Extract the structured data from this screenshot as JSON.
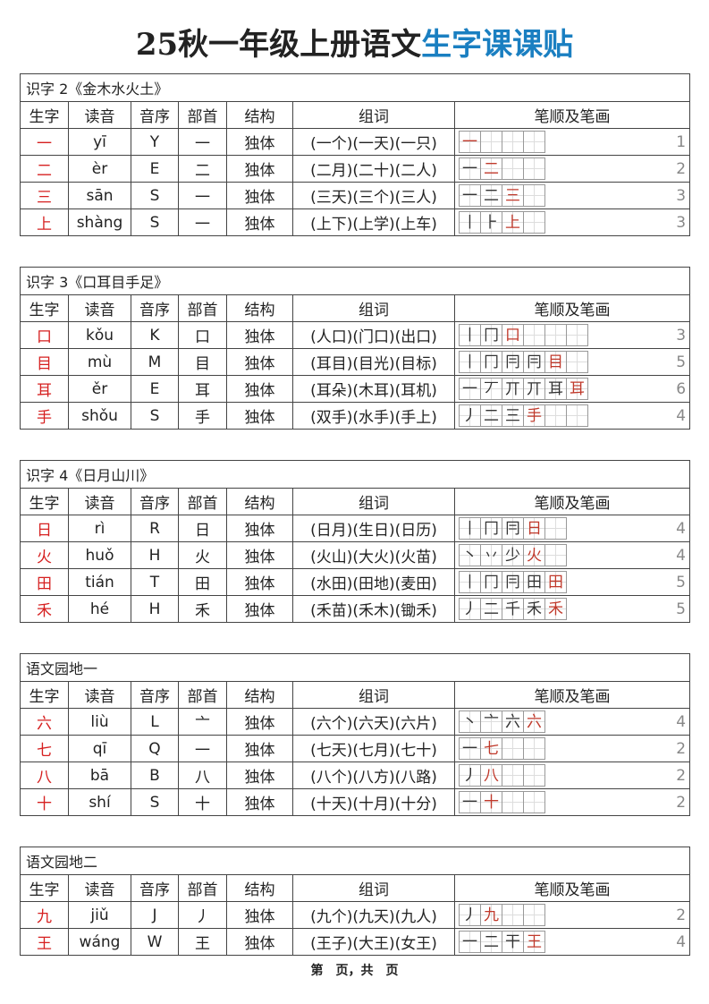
{
  "header": {
    "title_main": "25秋一年级上册语文",
    "title_highlight": "生字课课贴"
  },
  "column_headers": [
    "生字",
    "读音",
    "音序",
    "部首",
    "结构",
    "组词",
    "笔顺及笔画"
  ],
  "sections": [
    {
      "title": "识字 2《金木水火土》",
      "rows": [
        {
          "char": "一",
          "pinyin": "yī",
          "initial": "Y",
          "radical": "一",
          "structure": "独体",
          "words": "(一个)(一天)(一只)",
          "strokes": [
            "一"
          ],
          "count": 1
        },
        {
          "char": "二",
          "pinyin": "èr",
          "initial": "E",
          "radical": "二",
          "structure": "独体",
          "words": "(二月)(二十)(二人)",
          "strokes": [
            "一",
            "二"
          ],
          "count": 2
        },
        {
          "char": "三",
          "pinyin": "sān",
          "initial": "S",
          "radical": "一",
          "structure": "独体",
          "words": "(三天)(三个)(三人)",
          "strokes": [
            "一",
            "二",
            "三"
          ],
          "count": 3
        },
        {
          "char": "上",
          "pinyin": "shàng",
          "initial": "S",
          "radical": "一",
          "structure": "独体",
          "words": "(上下)(上学)(上车)",
          "strokes": [
            "丨",
            "⺊",
            "上"
          ],
          "count": 3
        }
      ]
    },
    {
      "title": "识字 3《口耳目手足》",
      "rows": [
        {
          "char": "口",
          "pinyin": "kǒu",
          "initial": "K",
          "radical": "口",
          "structure": "独体",
          "words": "(人口)(门口)(出口)",
          "strokes": [
            "丨",
            "冂",
            "口"
          ],
          "count": 3
        },
        {
          "char": "目",
          "pinyin": "mù",
          "initial": "M",
          "radical": "目",
          "structure": "独体",
          "words": "(耳目)(目光)(目标)",
          "strokes": [
            "丨",
            "冂",
            "冃",
            "冃",
            "目"
          ],
          "count": 5
        },
        {
          "char": "耳",
          "pinyin": "ěr",
          "initial": "E",
          "radical": "耳",
          "structure": "独体",
          "words": "(耳朵)(木耳)(耳机)",
          "strokes": [
            "一",
            "丆",
            "丌",
            "丌",
            "耳",
            "耳"
          ],
          "count": 6
        },
        {
          "char": "手",
          "pinyin": "shǒu",
          "initial": "S",
          "radical": "手",
          "structure": "独体",
          "words": "(双手)(水手)(手上)",
          "strokes": [
            "丿",
            "二",
            "三",
            "手"
          ],
          "count": 4
        }
      ]
    },
    {
      "title": "识字 4《日月山川》",
      "rows": [
        {
          "char": "日",
          "pinyin": "rì",
          "initial": "R",
          "radical": "日",
          "structure": "独体",
          "words": "(日月)(生日)(日历)",
          "strokes": [
            "丨",
            "冂",
            "冃",
            "日"
          ],
          "count": 4
        },
        {
          "char": "火",
          "pinyin": "huǒ",
          "initial": "H",
          "radical": "火",
          "structure": "独体",
          "words": "(火山)(大火)(火苗)",
          "strokes": [
            "丶",
            "丷",
            "少",
            "火"
          ],
          "count": 4
        },
        {
          "char": "田",
          "pinyin": "tián",
          "initial": "T",
          "radical": "田",
          "structure": "独体",
          "words": "(水田)(田地)(麦田)",
          "strokes": [
            "丨",
            "冂",
            "冃",
            "田",
            "田"
          ],
          "count": 5
        },
        {
          "char": "禾",
          "pinyin": "hé",
          "initial": "H",
          "radical": "禾",
          "structure": "独体",
          "words": "(禾苗)(禾木)(锄禾)",
          "strokes": [
            "丿",
            "二",
            "千",
            "禾",
            "禾"
          ],
          "count": 5
        }
      ]
    },
    {
      "title": "语文园地一",
      "rows": [
        {
          "char": "六",
          "pinyin": "liù",
          "initial": "L",
          "radical": "亠",
          "structure": "独体",
          "words": "(六个)(六天)(六片)",
          "strokes": [
            "丶",
            "亠",
            "六",
            "六"
          ],
          "count": 4
        },
        {
          "char": "七",
          "pinyin": "qī",
          "initial": "Q",
          "radical": "一",
          "structure": "独体",
          "words": "(七天)(七月)(七十)",
          "strokes": [
            "一",
            "七"
          ],
          "count": 2
        },
        {
          "char": "八",
          "pinyin": "bā",
          "initial": "B",
          "radical": "八",
          "structure": "独体",
          "words": "(八个)(八方)(八路)",
          "strokes": [
            "丿",
            "八"
          ],
          "count": 2
        },
        {
          "char": "十",
          "pinyin": "shí",
          "initial": "S",
          "radical": "十",
          "structure": "独体",
          "words": "(十天)(十月)(十分)",
          "strokes": [
            "一",
            "十"
          ],
          "count": 2
        }
      ]
    },
    {
      "title": "语文园地二",
      "rows": [
        {
          "char": "九",
          "pinyin": "jiǔ",
          "initial": "J",
          "radical": "丿",
          "structure": "独体",
          "words": "(九个)(九天)(九人)",
          "strokes": [
            "丿",
            "九"
          ],
          "count": 2
        },
        {
          "char": "王",
          "pinyin": "wáng",
          "initial": "W",
          "radical": "王",
          "structure": "独体",
          "words": "(王子)(大王)(女王)",
          "strokes": [
            "一",
            "二",
            "干",
            "王"
          ],
          "count": 4
        }
      ]
    }
  ],
  "footer": "第　页，共　页"
}
